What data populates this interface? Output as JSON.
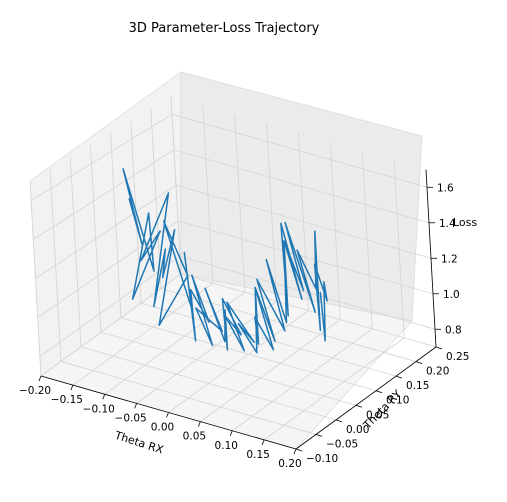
{
  "chart_data": {
    "type": "line",
    "projection": "3d",
    "title": "3D Parameter-Loss Trajectory",
    "xlabel": "Theta RX",
    "ylabel": "Theta RY",
    "zlabel": "Loss",
    "xlim": [
      -0.2,
      0.2
    ],
    "ylim": [
      -0.1,
      0.25
    ],
    "zlim": [
      0.7,
      1.7
    ],
    "xticks": [
      "−0.20",
      "−0.15",
      "−0.10",
      "−0.05",
      "0.00",
      "0.05",
      "0.10",
      "0.15",
      "0.20"
    ],
    "yticks": [
      "−0.10",
      "−0.05",
      "0.00",
      "0.05",
      "0.10",
      "0.15",
      "0.20",
      "0.25"
    ],
    "zticks": [
      "0.8",
      "1.0",
      "1.2",
      "1.4",
      "1.6"
    ],
    "xtick_values": [
      -0.2,
      -0.15,
      -0.1,
      -0.05,
      0.0,
      0.05,
      0.1,
      0.15,
      0.2
    ],
    "ytick_values": [
      -0.1,
      -0.05,
      0.0,
      0.05,
      0.1,
      0.15,
      0.2,
      0.25
    ],
    "ztick_values": [
      0.8,
      1.0,
      1.2,
      1.4,
      1.6
    ],
    "grid": true,
    "line_color": "#1f77b4",
    "series": [
      {
        "points": [
          [
            -0.15,
            0.06,
            1.45
          ],
          [
            -0.14,
            0.07,
            1.2
          ],
          [
            -0.15,
            0.05,
            1.62
          ],
          [
            -0.13,
            0.08,
            1.05
          ],
          [
            -0.12,
            0.06,
            1.4
          ],
          [
            -0.14,
            0.04,
            0.95
          ],
          [
            -0.11,
            0.07,
            1.3
          ],
          [
            -0.13,
            0.05,
            1.15
          ],
          [
            -0.1,
            0.08,
            1.5
          ],
          [
            -0.12,
            0.06,
            0.9
          ],
          [
            -0.09,
            0.05,
            1.25
          ],
          [
            -0.11,
            0.07,
            1.05
          ],
          [
            -0.08,
            0.06,
            1.35
          ],
          [
            -0.1,
            0.04,
            0.85
          ],
          [
            -0.07,
            0.07,
            1.1
          ],
          [
            -0.09,
            0.05,
            1.4
          ],
          [
            -0.06,
            0.06,
            0.95
          ],
          [
            -0.08,
            0.08,
            1.2
          ],
          [
            -0.05,
            0.05,
            0.8
          ],
          [
            -0.06,
            0.06,
            1.05
          ],
          [
            -0.04,
            0.07,
            0.88
          ],
          [
            -0.05,
            0.05,
            1.15
          ],
          [
            -0.03,
            0.06,
            0.78
          ],
          [
            -0.04,
            0.04,
            1.0
          ],
          [
            -0.02,
            0.07,
            0.85
          ],
          [
            -0.03,
            0.05,
            1.1
          ],
          [
            -0.01,
            0.06,
            0.82
          ],
          [
            -0.02,
            0.08,
            0.95
          ],
          [
            0.0,
            0.05,
            0.8
          ],
          [
            -0.01,
            0.06,
            1.05
          ],
          [
            0.01,
            0.07,
            0.86
          ],
          [
            0.0,
            0.05,
            0.98
          ],
          [
            0.02,
            0.06,
            0.8
          ],
          [
            0.01,
            0.04,
            1.08
          ],
          [
            0.03,
            0.07,
            0.84
          ],
          [
            0.02,
            0.05,
            0.96
          ],
          [
            0.04,
            0.06,
            0.81
          ],
          [
            0.03,
            0.08,
            1.12
          ],
          [
            0.05,
            0.05,
            0.88
          ],
          [
            0.04,
            0.06,
            1.0
          ],
          [
            0.06,
            0.07,
            0.83
          ],
          [
            0.05,
            0.05,
            1.18
          ],
          [
            0.07,
            0.06,
            0.9
          ],
          [
            0.06,
            0.04,
            1.25
          ],
          [
            0.08,
            0.07,
            0.95
          ],
          [
            0.07,
            0.05,
            1.35
          ],
          [
            0.09,
            0.06,
            1.02
          ],
          [
            0.08,
            0.08,
            1.42
          ],
          [
            0.1,
            0.05,
            1.08
          ],
          [
            0.09,
            0.06,
            1.55
          ],
          [
            0.11,
            0.07,
            1.15
          ],
          [
            0.1,
            0.05,
            1.48
          ],
          [
            0.12,
            0.06,
            1.22
          ],
          [
            0.11,
            0.04,
            1.6
          ],
          [
            0.13,
            0.07,
            1.1
          ],
          [
            0.12,
            0.05,
            1.45
          ],
          [
            0.14,
            0.06,
            1.25
          ],
          [
            0.13,
            0.08,
            1.52
          ],
          [
            0.15,
            0.05,
            1.05
          ],
          [
            0.14,
            0.06,
            1.38
          ],
          [
            0.15,
            0.07,
            1.18
          ],
          [
            0.16,
            0.05,
            1.32
          ],
          [
            0.15,
            0.06,
            0.98
          ],
          [
            0.16,
            0.04,
            1.28
          ]
        ]
      }
    ]
  }
}
